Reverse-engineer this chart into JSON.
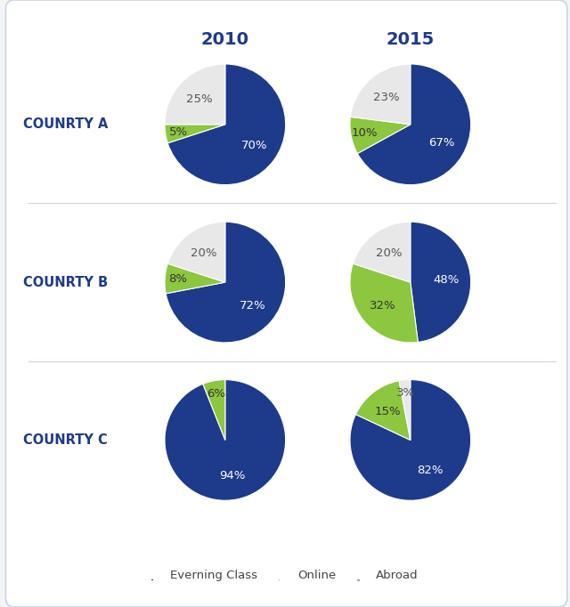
{
  "title_2010": "2010",
  "title_2015": "2015",
  "country_labels": [
    "COUNRTY A",
    "COUNRTY B",
    "COUNRTY C"
  ],
  "colors": {
    "evening": "#1e3a8a",
    "online": "#8dc63f",
    "abroad": "#e8e8e8"
  },
  "data_2010": [
    [
      70,
      5,
      25
    ],
    [
      72,
      8,
      20
    ],
    [
      94,
      6,
      0
    ]
  ],
  "data_2015": [
    [
      67,
      10,
      23
    ],
    [
      48,
      32,
      20
    ],
    [
      82,
      15,
      3
    ]
  ],
  "legend_labels": [
    "Everning Class",
    "Online",
    "Abroad"
  ],
  "background_color": "#f2f4f8",
  "box_facecolor": "#ffffff",
  "border_color": "#c8d4e8",
  "sep_color": "#c8d4e8",
  "title_color": "#1e3a8a",
  "country_label_color": "#1e3a8a",
  "header_fontsize": 14,
  "country_fontsize": 10.5,
  "pct_fontsize": 9.5
}
